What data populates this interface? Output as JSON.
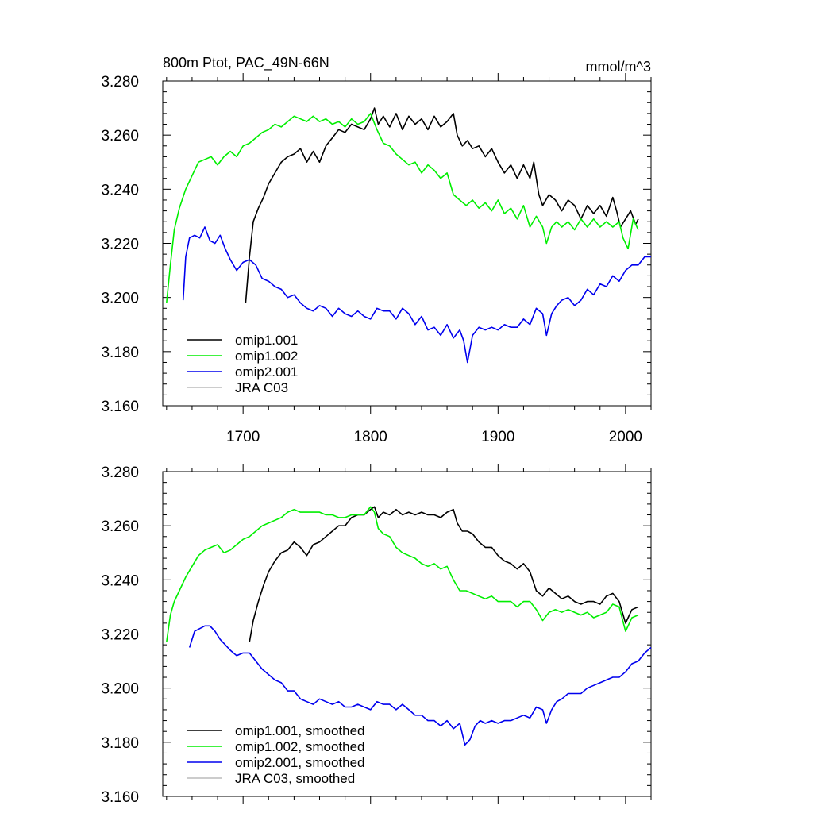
{
  "chart_data": [
    {
      "type": "line",
      "title": "800m Ptot, PAC_49N-66N",
      "units": "mmol/m^3",
      "xlim": [
        1637,
        2020
      ],
      "ylim": [
        3.16,
        3.28
      ],
      "x_ticks": [
        1700,
        1800,
        1900,
        2000
      ],
      "x_tick_labels": [
        "1700",
        "1800",
        "1900",
        "2000"
      ],
      "y_ticks": [
        3.16,
        3.18,
        3.2,
        3.22,
        3.24,
        3.26,
        3.28
      ],
      "y_tick_labels": [
        "3.160",
        "3.180",
        "3.200",
        "3.220",
        "3.240",
        "3.260",
        "3.280"
      ],
      "grid": false,
      "legend_position": "bottom-left",
      "series": [
        {
          "name": "omip1.001",
          "color": "#000000",
          "x": [
            1702,
            1705,
            1708,
            1712,
            1716,
            1720,
            1725,
            1730,
            1735,
            1740,
            1745,
            1750,
            1755,
            1760,
            1765,
            1770,
            1775,
            1780,
            1785,
            1790,
            1795,
            1800,
            1803,
            1806,
            1810,
            1815,
            1820,
            1825,
            1830,
            1835,
            1840,
            1845,
            1850,
            1855,
            1860,
            1865,
            1868,
            1872,
            1876,
            1880,
            1885,
            1890,
            1895,
            1900,
            1905,
            1910,
            1915,
            1920,
            1925,
            1928,
            1932,
            1935,
            1940,
            1945,
            1950,
            1955,
            1960,
            1965,
            1970,
            1975,
            1980,
            1985,
            1990,
            1993,
            1996,
            2000,
            2004,
            2008,
            2010
          ],
          "y": [
            3.198,
            3.215,
            3.228,
            3.233,
            3.237,
            3.242,
            3.246,
            3.25,
            3.252,
            3.253,
            3.255,
            3.25,
            3.254,
            3.25,
            3.256,
            3.259,
            3.262,
            3.261,
            3.264,
            3.263,
            3.262,
            3.266,
            3.27,
            3.264,
            3.267,
            3.263,
            3.268,
            3.262,
            3.267,
            3.264,
            3.266,
            3.262,
            3.267,
            3.263,
            3.265,
            3.268,
            3.26,
            3.256,
            3.258,
            3.255,
            3.256,
            3.252,
            3.255,
            3.25,
            3.246,
            3.249,
            3.244,
            3.249,
            3.244,
            3.25,
            3.238,
            3.234,
            3.238,
            3.236,
            3.232,
            3.236,
            3.234,
            3.229,
            3.234,
            3.231,
            3.234,
            3.23,
            3.237,
            3.232,
            3.226,
            3.229,
            3.232,
            3.227,
            3.229
          ]
        },
        {
          "name": "omip1.002",
          "color": "#00ee00",
          "x": [
            1640,
            1643,
            1646,
            1650,
            1655,
            1660,
            1665,
            1670,
            1675,
            1680,
            1685,
            1690,
            1695,
            1700,
            1705,
            1710,
            1715,
            1720,
            1725,
            1730,
            1735,
            1740,
            1745,
            1750,
            1755,
            1760,
            1765,
            1770,
            1775,
            1780,
            1785,
            1790,
            1795,
            1800,
            1805,
            1810,
            1815,
            1820,
            1825,
            1830,
            1835,
            1840,
            1845,
            1850,
            1855,
            1860,
            1865,
            1870,
            1875,
            1880,
            1885,
            1890,
            1895,
            1900,
            1905,
            1910,
            1915,
            1920,
            1925,
            1930,
            1935,
            1938,
            1942,
            1946,
            1950,
            1955,
            1960,
            1965,
            1970,
            1975,
            1980,
            1985,
            1990,
            1995,
            1998,
            2002,
            2006,
            2010
          ],
          "y": [
            3.198,
            3.212,
            3.225,
            3.233,
            3.24,
            3.245,
            3.25,
            3.251,
            3.252,
            3.249,
            3.252,
            3.254,
            3.252,
            3.256,
            3.257,
            3.259,
            3.261,
            3.262,
            3.264,
            3.263,
            3.265,
            3.267,
            3.266,
            3.265,
            3.267,
            3.265,
            3.266,
            3.264,
            3.265,
            3.263,
            3.266,
            3.264,
            3.265,
            3.268,
            3.262,
            3.257,
            3.256,
            3.253,
            3.251,
            3.249,
            3.25,
            3.246,
            3.249,
            3.247,
            3.244,
            3.246,
            3.238,
            3.236,
            3.234,
            3.236,
            3.233,
            3.235,
            3.232,
            3.236,
            3.231,
            3.233,
            3.229,
            3.234,
            3.226,
            3.23,
            3.226,
            3.22,
            3.226,
            3.228,
            3.226,
            3.228,
            3.225,
            3.229,
            3.226,
            3.229,
            3.226,
            3.228,
            3.226,
            3.228,
            3.222,
            3.218,
            3.229,
            3.225
          ]
        },
        {
          "name": "omip2.001",
          "color": "#0000ee",
          "x": [
            1653,
            1655,
            1658,
            1662,
            1666,
            1670,
            1674,
            1678,
            1682,
            1686,
            1690,
            1695,
            1700,
            1705,
            1710,
            1715,
            1720,
            1725,
            1730,
            1735,
            1740,
            1745,
            1750,
            1755,
            1760,
            1765,
            1770,
            1775,
            1780,
            1785,
            1790,
            1795,
            1800,
            1805,
            1810,
            1815,
            1820,
            1825,
            1830,
            1835,
            1840,
            1845,
            1850,
            1855,
            1860,
            1865,
            1870,
            1873,
            1876,
            1880,
            1885,
            1890,
            1895,
            1900,
            1905,
            1910,
            1915,
            1920,
            1925,
            1930,
            1935,
            1938,
            1942,
            1946,
            1950,
            1955,
            1960,
            1965,
            1970,
            1975,
            1980,
            1985,
            1990,
            1995,
            2000,
            2005,
            2010,
            2015,
            2020
          ],
          "y": [
            3.199,
            3.215,
            3.222,
            3.223,
            3.222,
            3.226,
            3.221,
            3.22,
            3.223,
            3.218,
            3.214,
            3.21,
            3.213,
            3.214,
            3.212,
            3.207,
            3.206,
            3.204,
            3.203,
            3.2,
            3.201,
            3.198,
            3.196,
            3.195,
            3.197,
            3.196,
            3.193,
            3.196,
            3.194,
            3.193,
            3.195,
            3.193,
            3.192,
            3.196,
            3.195,
            3.195,
            3.192,
            3.196,
            3.194,
            3.19,
            3.193,
            3.188,
            3.189,
            3.186,
            3.19,
            3.185,
            3.188,
            3.184,
            3.176,
            3.186,
            3.189,
            3.188,
            3.189,
            3.188,
            3.19,
            3.189,
            3.189,
            3.192,
            3.19,
            3.196,
            3.194,
            3.186,
            3.194,
            3.197,
            3.199,
            3.2,
            3.197,
            3.199,
            3.203,
            3.201,
            3.205,
            3.204,
            3.208,
            3.206,
            3.21,
            3.212,
            3.212,
            3.215,
            3.215
          ]
        },
        {
          "name": "JRA C03",
          "color": "#bbbbbb",
          "x": [],
          "y": []
        }
      ]
    },
    {
      "type": "line",
      "title": "",
      "units": "",
      "xlim": [
        1637,
        2020
      ],
      "ylim": [
        3.16,
        3.28
      ],
      "x_ticks": [
        1700,
        1800,
        1900,
        2000
      ],
      "x_tick_labels": [],
      "y_ticks": [
        3.16,
        3.18,
        3.2,
        3.22,
        3.24,
        3.26,
        3.28
      ],
      "y_tick_labels": [
        "3.160",
        "3.180",
        "3.200",
        "3.220",
        "3.240",
        "3.260",
        "3.280"
      ],
      "grid": false,
      "legend_position": "bottom-left",
      "series": [
        {
          "name": "omip1.001, smoothed",
          "color": "#000000",
          "x": [
            1705,
            1708,
            1712,
            1716,
            1720,
            1725,
            1730,
            1735,
            1740,
            1745,
            1750,
            1755,
            1760,
            1765,
            1770,
            1775,
            1780,
            1785,
            1790,
            1795,
            1800,
            1803,
            1806,
            1810,
            1815,
            1820,
            1825,
            1830,
            1835,
            1840,
            1845,
            1850,
            1855,
            1860,
            1865,
            1868,
            1872,
            1876,
            1880,
            1885,
            1890,
            1895,
            1900,
            1905,
            1910,
            1915,
            1920,
            1925,
            1930,
            1935,
            1940,
            1945,
            1950,
            1955,
            1960,
            1965,
            1970,
            1975,
            1980,
            1985,
            1990,
            1995,
            2000,
            2005,
            2010
          ],
          "y": [
            3.217,
            3.225,
            3.232,
            3.238,
            3.243,
            3.247,
            3.25,
            3.251,
            3.254,
            3.252,
            3.249,
            3.253,
            3.254,
            3.256,
            3.258,
            3.26,
            3.26,
            3.263,
            3.264,
            3.264,
            3.266,
            3.267,
            3.263,
            3.265,
            3.264,
            3.266,
            3.264,
            3.265,
            3.264,
            3.265,
            3.264,
            3.264,
            3.263,
            3.265,
            3.266,
            3.261,
            3.258,
            3.258,
            3.257,
            3.254,
            3.252,
            3.252,
            3.249,
            3.247,
            3.246,
            3.244,
            3.246,
            3.243,
            3.236,
            3.234,
            3.237,
            3.235,
            3.233,
            3.234,
            3.232,
            3.231,
            3.232,
            3.232,
            3.231,
            3.234,
            3.235,
            3.232,
            3.224,
            3.229,
            3.23
          ]
        },
        {
          "name": "omip1.002, smoothed",
          "color": "#00ee00",
          "x": [
            1640,
            1643,
            1646,
            1650,
            1655,
            1660,
            1665,
            1670,
            1675,
            1680,
            1685,
            1690,
            1695,
            1700,
            1705,
            1710,
            1715,
            1720,
            1725,
            1730,
            1735,
            1740,
            1745,
            1750,
            1755,
            1760,
            1765,
            1770,
            1775,
            1780,
            1785,
            1790,
            1795,
            1800,
            1803,
            1806,
            1810,
            1815,
            1820,
            1825,
            1830,
            1835,
            1840,
            1845,
            1850,
            1855,
            1860,
            1865,
            1870,
            1875,
            1880,
            1885,
            1890,
            1895,
            1900,
            1905,
            1910,
            1915,
            1920,
            1925,
            1930,
            1935,
            1940,
            1945,
            1950,
            1955,
            1960,
            1965,
            1970,
            1975,
            1980,
            1985,
            1990,
            1995,
            2000,
            2005,
            2010
          ],
          "y": [
            3.217,
            3.227,
            3.232,
            3.236,
            3.241,
            3.245,
            3.249,
            3.251,
            3.252,
            3.253,
            3.25,
            3.251,
            3.253,
            3.255,
            3.256,
            3.258,
            3.26,
            3.261,
            3.262,
            3.263,
            3.265,
            3.266,
            3.265,
            3.265,
            3.265,
            3.265,
            3.264,
            3.264,
            3.263,
            3.263,
            3.264,
            3.264,
            3.264,
            3.267,
            3.265,
            3.259,
            3.257,
            3.256,
            3.252,
            3.25,
            3.249,
            3.248,
            3.246,
            3.245,
            3.246,
            3.244,
            3.245,
            3.24,
            3.236,
            3.236,
            3.235,
            3.234,
            3.233,
            3.234,
            3.232,
            3.232,
            3.232,
            3.23,
            3.232,
            3.232,
            3.229,
            3.225,
            3.228,
            3.229,
            3.228,
            3.229,
            3.228,
            3.227,
            3.228,
            3.226,
            3.227,
            3.228,
            3.231,
            3.23,
            3.221,
            3.226,
            3.227
          ]
        },
        {
          "name": "omip2.001, smoothed",
          "color": "#0000ee",
          "x": [
            1658,
            1662,
            1666,
            1670,
            1674,
            1678,
            1682,
            1686,
            1690,
            1695,
            1700,
            1705,
            1710,
            1715,
            1720,
            1725,
            1730,
            1735,
            1740,
            1745,
            1750,
            1755,
            1760,
            1765,
            1770,
            1775,
            1780,
            1785,
            1790,
            1795,
            1800,
            1805,
            1810,
            1815,
            1820,
            1825,
            1830,
            1835,
            1840,
            1845,
            1850,
            1855,
            1860,
            1865,
            1870,
            1874,
            1878,
            1882,
            1886,
            1890,
            1895,
            1900,
            1905,
            1910,
            1915,
            1920,
            1925,
            1930,
            1935,
            1938,
            1942,
            1946,
            1950,
            1955,
            1960,
            1965,
            1970,
            1975,
            1980,
            1985,
            1990,
            1995,
            2000,
            2005,
            2010,
            2015,
            2020
          ],
          "y": [
            3.215,
            3.221,
            3.222,
            3.223,
            3.223,
            3.221,
            3.218,
            3.216,
            3.214,
            3.212,
            3.213,
            3.213,
            3.21,
            3.207,
            3.205,
            3.203,
            3.202,
            3.199,
            3.199,
            3.196,
            3.195,
            3.194,
            3.196,
            3.195,
            3.194,
            3.195,
            3.193,
            3.193,
            3.194,
            3.193,
            3.192,
            3.195,
            3.194,
            3.194,
            3.192,
            3.194,
            3.192,
            3.19,
            3.19,
            3.188,
            3.188,
            3.186,
            3.188,
            3.185,
            3.187,
            3.179,
            3.181,
            3.186,
            3.188,
            3.187,
            3.188,
            3.187,
            3.188,
            3.188,
            3.189,
            3.19,
            3.189,
            3.193,
            3.192,
            3.187,
            3.192,
            3.195,
            3.196,
            3.198,
            3.198,
            3.198,
            3.2,
            3.201,
            3.202,
            3.203,
            3.204,
            3.204,
            3.206,
            3.209,
            3.21,
            3.213,
            3.215
          ]
        },
        {
          "name": "JRA C03, smoothed",
          "color": "#bbbbbb",
          "x": [],
          "y": []
        }
      ]
    }
  ]
}
